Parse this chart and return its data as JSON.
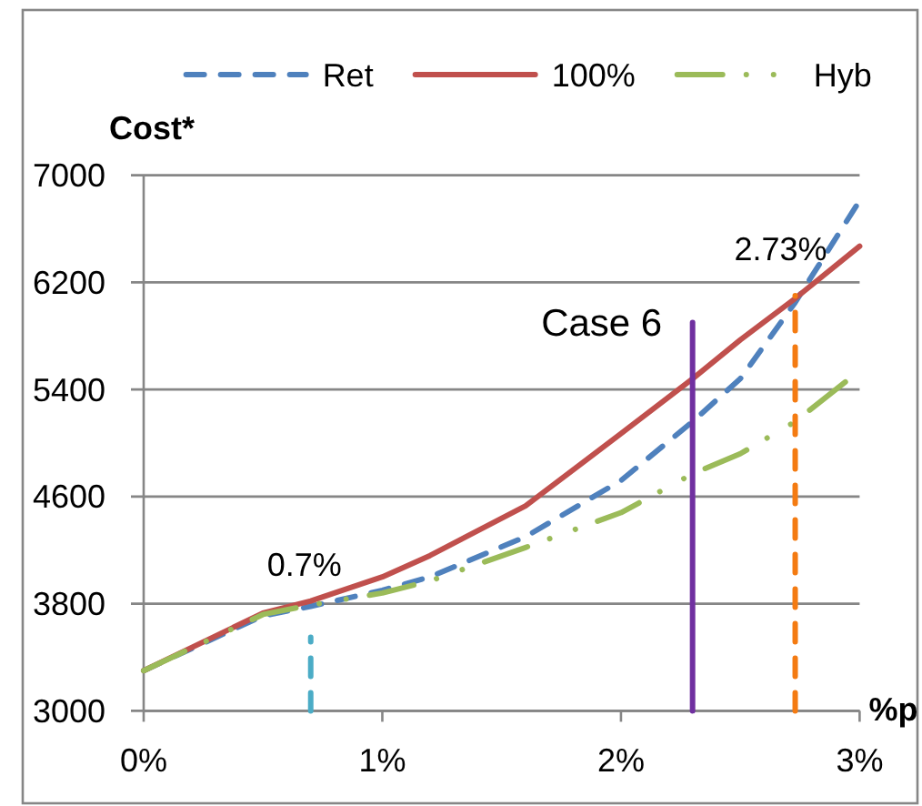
{
  "chart_data": {
    "type": "line",
    "xlabel": "%p",
    "ylabel": "Cost*",
    "x": [
      0,
      0.5,
      0.7,
      1,
      1.2,
      1.6,
      2,
      2.3,
      2.5,
      2.73,
      3
    ],
    "series": [
      {
        "name": "Ret",
        "color": "#4f81bd",
        "line_style": "dashed",
        "values": [
          3300,
          3710,
          3780,
          3900,
          4000,
          4300,
          4720,
          5160,
          5480,
          6050,
          6810
        ]
      },
      {
        "name": "100%",
        "color": "#c0504d",
        "line_style": "solid",
        "values": [
          3300,
          3730,
          3820,
          4000,
          4160,
          4530,
          5070,
          5480,
          5770,
          6080,
          6470
        ]
      },
      {
        "name": "Hyb",
        "color": "#9bbb59",
        "line_style": "dashdot",
        "values": [
          3300,
          3720,
          3790,
          3880,
          3970,
          4220,
          4480,
          4770,
          4920,
          5160,
          5540
        ]
      },
      {
        "color": "#4bacc6",
        "line_style": "dashed",
        "x": [
          0.7,
          0.7
        ],
        "values": [
          3000,
          3550
        ]
      },
      {
        "color": "#7030a0",
        "line_style": "solid",
        "x": [
          2.3,
          2.3
        ],
        "values": [
          3000,
          5900
        ]
      },
      {
        "color": "#f47b12",
        "line_style": "dashed",
        "x": [
          2.73,
          2.73
        ],
        "values": [
          3000,
          6100
        ]
      }
    ],
    "xlim": [
      0,
      3
    ],
    "xticks": [
      {
        "value": 0,
        "label": "0%"
      },
      {
        "value": 1,
        "label": "1%"
      },
      {
        "value": 2,
        "label": "2%"
      },
      {
        "value": 3,
        "label": "3%"
      }
    ],
    "ylim": [
      3000,
      7000
    ],
    "yticks": [
      3000,
      3800,
      4600,
      5400,
      6200,
      7000
    ],
    "grid": "y",
    "legend": "top",
    "annotations": [
      {
        "text": "0.7%",
        "x": 0.7,
        "y": 3820
      },
      {
        "text": "Case 6",
        "x": 2.3,
        "y": 5900
      },
      {
        "text": "2.73%",
        "x": 2.73,
        "y": 6100
      }
    ]
  }
}
